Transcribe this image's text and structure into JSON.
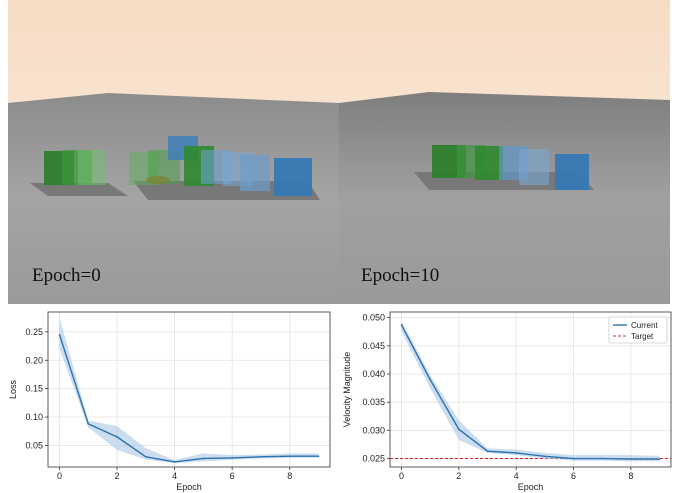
{
  "scenes": [
    {
      "label": "Epoch=0"
    },
    {
      "label": "Epoch=10"
    }
  ],
  "colors": {
    "sky_top": "#f6ddc6",
    "sky_bottom": "#fbeee3",
    "ground": "#9c9c9c",
    "green_cube": "#2f8a2f",
    "blue_cube": "#3f7fb8",
    "line": "#2b73b0",
    "band": "#a9c6e4",
    "target": "#d62728"
  },
  "chart_data": [
    {
      "type": "line",
      "xlabel": "Epoch",
      "ylabel": "Loss",
      "x": [
        0,
        1,
        2,
        3,
        4,
        5,
        6,
        7,
        8,
        9
      ],
      "series": [
        {
          "values": [
            0.245,
            0.088,
            0.065,
            0.03,
            0.021,
            0.027,
            0.028,
            0.03,
            0.031,
            0.031
          ],
          "lower": [
            0.22,
            0.082,
            0.042,
            0.025,
            0.019,
            0.022,
            0.025,
            0.027,
            0.028,
            0.028
          ],
          "upper": [
            0.275,
            0.094,
            0.084,
            0.045,
            0.024,
            0.036,
            0.033,
            0.034,
            0.036,
            0.036
          ]
        }
      ],
      "xlim": [
        -0.4,
        9.4
      ],
      "ylim": [
        0.012,
        0.285
      ],
      "xticks": [
        0,
        2,
        4,
        6,
        8
      ],
      "yticks": [
        0.05,
        0.1,
        0.15,
        0.2,
        0.25
      ],
      "ytick_labels": [
        "0.05",
        "0.10",
        "0.15",
        "0.20",
        "0.25"
      ],
      "grid": true
    },
    {
      "type": "line",
      "xlabel": "Epoch",
      "ylabel": "Velocity Magnitude",
      "x": [
        0,
        1,
        2,
        3,
        4,
        5,
        6,
        7,
        8,
        9
      ],
      "series": [
        {
          "name": "Current",
          "values": [
            0.0487,
            0.039,
            0.0302,
            0.0263,
            0.026,
            0.0254,
            0.025,
            0.025,
            0.0249,
            0.0249
          ],
          "lower": [
            0.0475,
            0.0375,
            0.0283,
            0.026,
            0.0256,
            0.025,
            0.0246,
            0.0246,
            0.0245,
            0.0245
          ],
          "upper": [
            0.0495,
            0.0398,
            0.0318,
            0.0268,
            0.0266,
            0.026,
            0.0256,
            0.0256,
            0.0256,
            0.0255
          ]
        }
      ],
      "target": {
        "name": "Target",
        "value": 0.025
      },
      "xlim": [
        -0.4,
        9.4
      ],
      "ylim": [
        0.0235,
        0.051
      ],
      "xticks": [
        0,
        2,
        4,
        6,
        8
      ],
      "yticks": [
        0.025,
        0.03,
        0.035,
        0.04,
        0.045,
        0.05
      ],
      "ytick_labels": [
        "0.025",
        "0.030",
        "0.035",
        "0.040",
        "0.045",
        "0.050"
      ],
      "legend_position": "top-right",
      "grid": true
    }
  ]
}
